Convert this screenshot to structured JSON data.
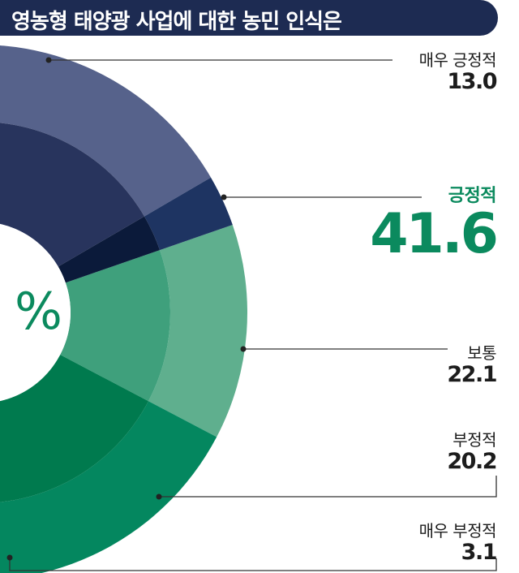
{
  "title": "영농형 태양광 사업에 대한 농민 인식은",
  "center_text": "%",
  "chart_data": {
    "type": "pie",
    "title": "영농형 태양광 사업에 대한 농민 인식은",
    "outer_ring": [
      {
        "label": "매우 긍정적",
        "value": 13.0,
        "color": "#5faf8e"
      },
      {
        "label": "긍정적",
        "value": 41.6,
        "color": "#04875f"
      },
      {
        "label": "보통",
        "value": 22.1,
        "color": "#b0d3c4"
      },
      {
        "label": "부정적",
        "value": 20.2,
        "color": "#56628b"
      },
      {
        "label": "매우 부정적",
        "value": 3.1,
        "color": "#1e3462"
      }
    ],
    "inner_ring_colors": [
      "#3fa07c",
      "#007a4e",
      "#7fb9a2",
      "#28345d",
      "#0b1a3a"
    ]
  },
  "labels": [
    {
      "name": "매우 긍정적",
      "value": "13.0",
      "highlight": false
    },
    {
      "name": "긍정적",
      "value": "41.6",
      "highlight": true
    },
    {
      "name": "보통",
      "value": "22.1",
      "highlight": false
    },
    {
      "name": "부정적",
      "value": "20.2",
      "highlight": false
    },
    {
      "name": "매우 부정적",
      "value": "3.1",
      "highlight": false
    }
  ]
}
